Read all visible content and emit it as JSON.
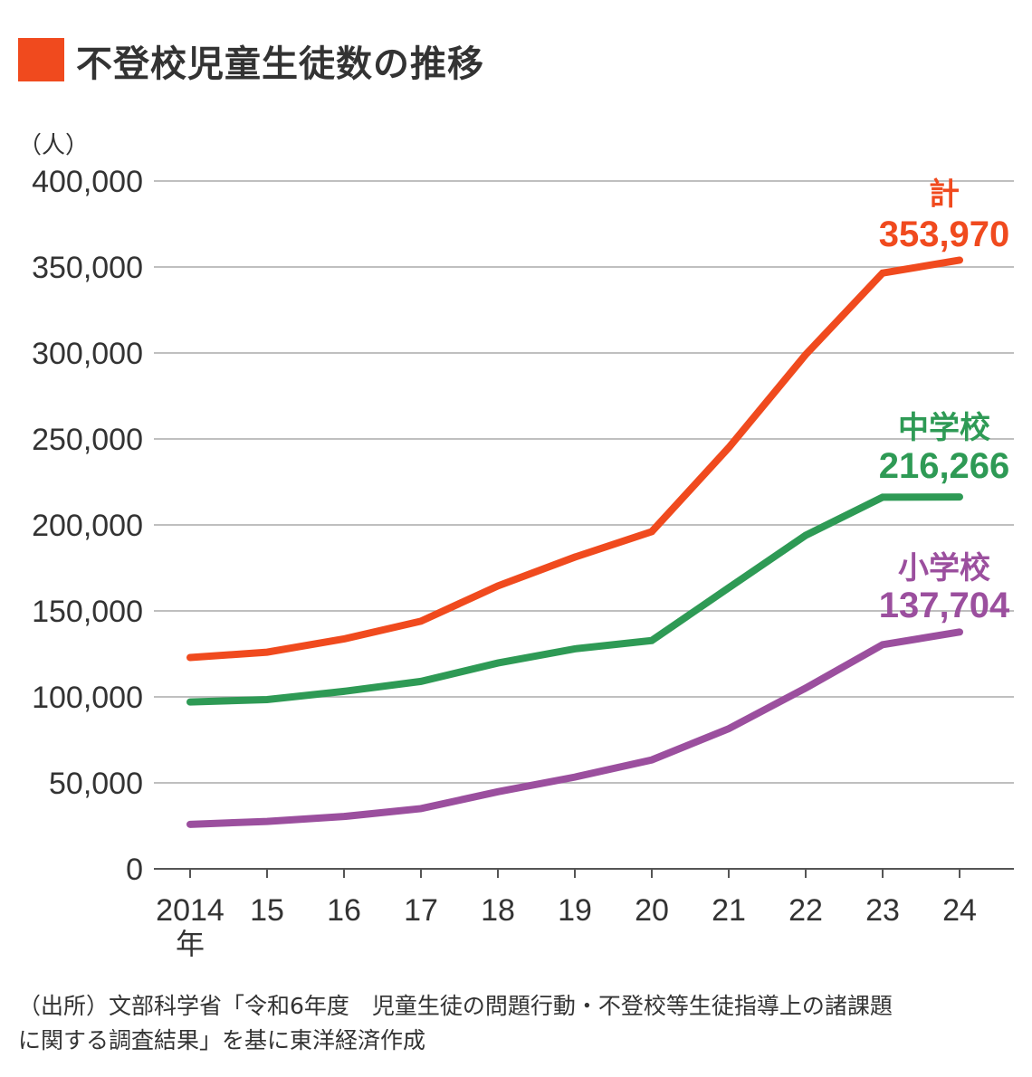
{
  "title": "不登校児童生徒数の推移",
  "colors": {
    "title_box": "#f04a1e",
    "grid": "#aaaaaa",
    "axis": "#555555"
  },
  "source_lines": [
    "（出所）文部科学省「令和6年度　児童生徒の問題行動・不登校等生徒指導上の諸課題",
    "に関する調査結果」を基に東洋経済作成"
  ],
  "chart_data": {
    "type": "line",
    "title": "不登校児童生徒数の推移",
    "ylabel": "（人）",
    "xlabel": "",
    "x": [
      2014,
      2015,
      2016,
      2017,
      2018,
      2019,
      2020,
      2021,
      2022,
      2023,
      2024
    ],
    "x_tick_labels": [
      "2014",
      "15",
      "16",
      "17",
      "18",
      "19",
      "20",
      "21",
      "22",
      "23",
      "24"
    ],
    "x_first_suffix": "年",
    "ylim": [
      0,
      400000
    ],
    "y_ticks": [
      0,
      50000,
      100000,
      150000,
      200000,
      250000,
      300000,
      350000,
      400000
    ],
    "y_tick_labels": [
      "0",
      "50,000",
      "100,000",
      "150,000",
      "200,000",
      "250,000",
      "300,000",
      "350,000",
      "400,000"
    ],
    "grid": true,
    "series": [
      {
        "name": "計",
        "color": "#f04a1e",
        "end_label": "353,970",
        "values": [
          122897,
          125991,
          133683,
          144031,
          164528,
          181272,
          196127,
          244940,
          299048,
          346482,
          353970
        ]
      },
      {
        "name": "中学校",
        "color": "#2e9a55",
        "end_label": "216,266",
        "values": [
          97033,
          98408,
          103235,
          108999,
          119687,
          127922,
          132777,
          163442,
          193936,
          216112,
          216266
        ]
      },
      {
        "name": "小学校",
        "color": "#9b4f9e",
        "end_label": "137,704",
        "values": [
          25864,
          27583,
          30448,
          35032,
          44841,
          53350,
          63350,
          81498,
          105112,
          130370,
          137704
        ]
      }
    ]
  }
}
